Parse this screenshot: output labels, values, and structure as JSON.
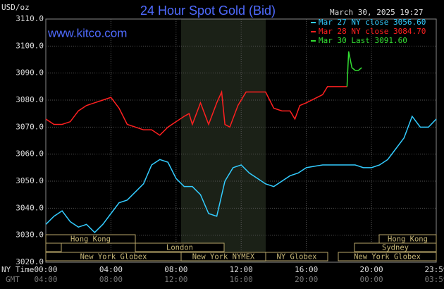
{
  "chart_data": {
    "type": "line",
    "title": "24 Hour Spot Gold (Bid)",
    "unit": "USD/oz",
    "timestamp": "March 30, 2025 19:27",
    "source": "www.kitco.com",
    "x_label": "NY Time",
    "x2_label": "GMT",
    "xlim": [
      0,
      23.98
    ],
    "xticks": [
      {
        "value": 0,
        "label": "00:00"
      },
      {
        "value": 4,
        "label": "04:00"
      },
      {
        "value": 8,
        "label": "08:00"
      },
      {
        "value": 12,
        "label": "12:00"
      },
      {
        "value": 16,
        "label": "16:00"
      },
      {
        "value": 20,
        "label": "20:00"
      },
      {
        "value": 23.98,
        "label": "23:59"
      }
    ],
    "x2_tick_labels": [
      "04:00",
      "08:00",
      "12:00",
      "16:00",
      "20:00",
      "00:00",
      "03:59"
    ],
    "ylim": [
      3020,
      3110
    ],
    "yticks": [
      {
        "value": 3020,
        "label": "3020.0"
      },
      {
        "value": 3030,
        "label": "3030.0"
      },
      {
        "value": 3040,
        "label": "3040.0"
      },
      {
        "value": 3050,
        "label": "3050.0"
      },
      {
        "value": 3060,
        "label": "3060.0"
      },
      {
        "value": 3070,
        "label": "3070.0"
      },
      {
        "value": 3080,
        "label": "3080.0"
      },
      {
        "value": 3090,
        "label": "3090.0"
      },
      {
        "value": 3100,
        "label": "3100.0"
      },
      {
        "value": 3110,
        "label": "3110.0"
      }
    ],
    "grid": true,
    "legend": "top-right",
    "sessions": [
      "Hong Kong",
      "London",
      "New York Globex",
      "New York NYMEX",
      "NY Globex",
      "Hong Kong",
      "Sydney",
      "New York Globex"
    ],
    "series": [
      {
        "name": "Mar 27 NY close 3056.60",
        "color": "#33ccff",
        "x": [
          0,
          0.5,
          1,
          1.5,
          2,
          2.5,
          3,
          3.5,
          4,
          4.5,
          5,
          5.5,
          6,
          6.5,
          7,
          7.5,
          8,
          8.5,
          9,
          9.5,
          10,
          10.5,
          11,
          11.5,
          12,
          12.5,
          13,
          13.5,
          14,
          14.5,
          15,
          15.5,
          16,
          16.5,
          17,
          18,
          19,
          19.5,
          20,
          20.5,
          21,
          21.5,
          22,
          22.5,
          23,
          23.5,
          23.98
        ],
        "values": [
          3034,
          3037,
          3039,
          3035,
          3033,
          3034,
          3031,
          3034,
          3038,
          3042,
          3043,
          3046,
          3049,
          3056,
          3058,
          3057,
          3051,
          3048,
          3048,
          3045,
          3038,
          3037,
          3050,
          3055,
          3056,
          3053,
          3051,
          3049,
          3048,
          3050,
          3052,
          3053,
          3055,
          3055.5,
          3056,
          3056,
          3056,
          3055,
          3055,
          3056,
          3058,
          3062,
          3066,
          3074,
          3070,
          3070,
          3073
        ]
      },
      {
        "name": "Mar 28 NY close 3084.70",
        "color": "#ff2020",
        "x": [
          0,
          0.5,
          1,
          1.5,
          2,
          2.5,
          3,
          3.5,
          4,
          4.5,
          5,
          5.5,
          6,
          6.5,
          7,
          7.5,
          8,
          8.5,
          8.8,
          9,
          9.5,
          10,
          10.5,
          10.8,
          11,
          11.3,
          11.8,
          12.3,
          13,
          13.5,
          14,
          14.5,
          15,
          15.3,
          15.6,
          16,
          17,
          17.3,
          18.5
        ],
        "values": [
          3073,
          3071,
          3071,
          3072,
          3076,
          3078,
          3079,
          3080,
          3081,
          3077,
          3071,
          3070,
          3069,
          3069,
          3067,
          3070,
          3072,
          3074,
          3075,
          3071,
          3079,
          3071,
          3079,
          3083,
          3071,
          3070,
          3078,
          3083,
          3083,
          3083,
          3077,
          3076,
          3076,
          3073,
          3078,
          3079,
          3082,
          3085,
          3085
        ]
      },
      {
        "name": "Mar 30 Last 3091.60",
        "color": "#33dd33",
        "x": [
          18.5,
          18.6,
          18.8,
          19,
          19.2,
          19.4
        ],
        "values": [
          3085,
          3098,
          3092,
          3091,
          3091,
          3092
        ]
      }
    ]
  }
}
